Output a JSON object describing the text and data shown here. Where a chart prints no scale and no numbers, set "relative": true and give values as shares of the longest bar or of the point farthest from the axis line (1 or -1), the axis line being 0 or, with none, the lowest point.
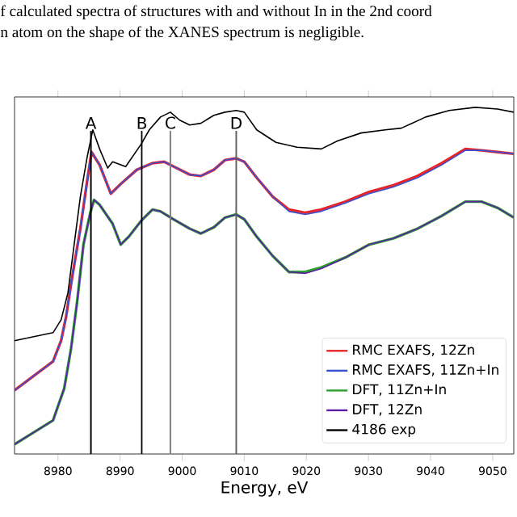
{
  "chart_data": {
    "type": "line",
    "relative": true,
    "xlabel": "Energy, eV",
    "annotations": [
      "f calculated spectra of structures with and without In in the 2nd coord",
      "n atom on the shape of the XANES spectrum is negligible."
    ],
    "xlim": [
      8973,
      9053.4
    ],
    "xticks": [
      8980,
      8990,
      9000,
      9010,
      9020,
      9030,
      9040,
      9050
    ],
    "legend": "bottom right",
    "tick_labels": "x",
    "ref_lines": [
      {
        "axis": "x",
        "value": 8985.3,
        "label": "A",
        "color": "#000000"
      },
      {
        "axis": "x",
        "value": 8993.5,
        "label": "B",
        "color": "#000000"
      },
      {
        "axis": "x",
        "value": 8998.1,
        "label": "C",
        "color": "#808080"
      },
      {
        "axis": "x",
        "value": 9008.7,
        "label": "D",
        "color": "#606060"
      }
    ],
    "series": [
      {
        "name": "RMC EXAFS, 12Zn",
        "color": "#e8262a",
        "x": [
          8973.0,
          8979.2,
          8980.5,
          8981.3,
          8982.3,
          8983.6,
          8984.7,
          8985.4,
          8986.7,
          8988.5,
          8990.1,
          8992.7,
          8995.2,
          8997.1,
          8999.1,
          9001.2,
          9003.0,
          9005.1,
          9006.9,
          9008.7,
          9010.0,
          9012.0,
          9014.6,
          9017.2,
          9019.8,
          9022.4,
          9026.3,
          9030.1,
          9034.0,
          9037.9,
          9041.8,
          9045.6,
          9048.2,
          9050.8,
          9053.4
        ],
        "values": [
          0.184,
          0.267,
          0.327,
          0.396,
          0.512,
          0.65,
          0.788,
          0.871,
          0.834,
          0.751,
          0.779,
          0.82,
          0.839,
          0.843,
          0.825,
          0.806,
          0.802,
          0.82,
          0.848,
          0.853,
          0.843,
          0.797,
          0.742,
          0.705,
          0.696,
          0.705,
          0.728,
          0.756,
          0.775,
          0.802,
          0.839,
          0.88,
          0.876,
          0.871,
          0.866
        ]
      },
      {
        "name": "RMC EXAFS, 11Zn+In",
        "color": "#3a4fd0",
        "x": [
          8973.0,
          8979.2,
          8980.5,
          8981.3,
          8982.3,
          8983.6,
          8984.7,
          8985.4,
          8986.7,
          8988.5,
          8990.1,
          8992.7,
          8995.2,
          8997.1,
          8999.1,
          9001.2,
          9003.0,
          9005.1,
          9006.9,
          9008.7,
          9010.0,
          9012.0,
          9014.6,
          9017.2,
          9019.8,
          9022.4,
          9026.3,
          9030.1,
          9034.0,
          9037.9,
          9041.8,
          9045.6,
          9048.2,
          9050.8,
          9053.4
        ],
        "values": [
          0.184,
          0.267,
          0.327,
          0.396,
          0.512,
          0.65,
          0.788,
          0.871,
          0.834,
          0.751,
          0.779,
          0.82,
          0.839,
          0.843,
          0.825,
          0.806,
          0.802,
          0.82,
          0.848,
          0.853,
          0.843,
          0.797,
          0.742,
          0.7,
          0.691,
          0.7,
          0.724,
          0.751,
          0.77,
          0.797,
          0.834,
          0.876,
          0.876,
          0.871,
          0.866
        ]
      },
      {
        "name": "DFT, 11Zn+In",
        "color": "#2ca02c",
        "x": [
          8973.0,
          8979.2,
          8981.0,
          8982.1,
          8983.1,
          8984.1,
          8985.2,
          8985.8,
          8986.7,
          8988.8,
          8990.1,
          8991.4,
          8993.4,
          8995.2,
          8996.5,
          8998.6,
          9001.2,
          9003.0,
          9005.1,
          9006.9,
          9008.7,
          9010.0,
          9012.0,
          9014.6,
          9017.2,
          9019.8,
          9022.4,
          9026.3,
          9030.1,
          9034.0,
          9037.9,
          9041.8,
          9045.6,
          9048.2,
          9050.8,
          9053.4
        ],
        "values": [
          0.028,
          0.097,
          0.189,
          0.304,
          0.442,
          0.604,
          0.696,
          0.733,
          0.719,
          0.664,
          0.604,
          0.627,
          0.673,
          0.705,
          0.7,
          0.677,
          0.65,
          0.636,
          0.654,
          0.682,
          0.691,
          0.677,
          0.627,
          0.571,
          0.525,
          0.525,
          0.538,
          0.567,
          0.604,
          0.622,
          0.65,
          0.687,
          0.728,
          0.728,
          0.71,
          0.682
        ]
      },
      {
        "name": "DFT, 12Zn",
        "color": "#5b1fa8",
        "x": [
          8973.0,
          8979.2,
          8981.0,
          8982.1,
          8983.1,
          8984.1,
          8985.2,
          8985.8,
          8986.7,
          8988.8,
          8990.1,
          8991.4,
          8993.4,
          8995.2,
          8996.5,
          8998.6,
          9001.2,
          9003.0,
          9005.1,
          9006.9,
          9008.7,
          9010.0,
          9012.0,
          9014.6,
          9017.2,
          9019.8,
          9022.4,
          9026.3,
          9030.1,
          9034.0,
          9037.9,
          9041.8,
          9045.6,
          9048.2,
          9050.8,
          9053.4
        ],
        "values": [
          0.028,
          0.097,
          0.189,
          0.304,
          0.442,
          0.604,
          0.696,
          0.733,
          0.719,
          0.664,
          0.604,
          0.627,
          0.673,
          0.705,
          0.7,
          0.677,
          0.65,
          0.636,
          0.654,
          0.682,
          0.691,
          0.677,
          0.627,
          0.571,
          0.525,
          0.521,
          0.535,
          0.567,
          0.604,
          0.622,
          0.65,
          0.687,
          0.728,
          0.728,
          0.71,
          0.682
        ]
      },
      {
        "name": "4186 exp",
        "color": "#000000",
        "x": [
          8973.0,
          8979.2,
          8980.5,
          8981.6,
          8982.6,
          8983.6,
          8984.7,
          8985.6,
          8986.7,
          8988.0,
          8988.8,
          8990.9,
          8993.4,
          8994.7,
          8996.5,
          8998.1,
          8999.6,
          9001.2,
          9003.0,
          9005.1,
          9006.9,
          9008.7,
          9010.0,
          9012.0,
          9015.1,
          9018.5,
          9022.4,
          9025.0,
          9028.8,
          9032.7,
          9035.3,
          9039.2,
          9043.0,
          9047.2,
          9050.8,
          9053.4
        ],
        "values": [
          0.327,
          0.35,
          0.387,
          0.465,
          0.604,
          0.742,
          0.857,
          0.935,
          0.88,
          0.825,
          0.843,
          0.829,
          0.894,
          0.935,
          0.972,
          0.986,
          0.963,
          0.949,
          0.954,
          0.977,
          0.986,
          0.991,
          0.986,
          0.935,
          0.899,
          0.885,
          0.88,
          0.903,
          0.926,
          0.935,
          0.94,
          0.972,
          0.991,
          1.0,
          0.995,
          0.986
        ]
      }
    ]
  }
}
